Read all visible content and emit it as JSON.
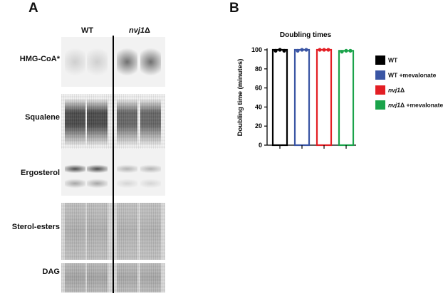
{
  "panelA": {
    "letter": "A",
    "columns": {
      "wt": "WT",
      "mutant_gene": "nvj1",
      "mutant_delta": "Δ"
    },
    "rows": [
      {
        "label": "HMG-CoA*",
        "wt_level": 0.15,
        "mutant_level": 0.65
      },
      {
        "label": "Squalene",
        "wt_level": 0.85,
        "mutant_level": 0.7
      },
      {
        "label": "Ergosterol",
        "wt_level": 0.85,
        "mutant_level": 0.3
      },
      {
        "label": "Sterol-esters",
        "wt_level": 0.55,
        "mutant_level": 0.5
      },
      {
        "label": "DAG",
        "wt_level": 0.7,
        "mutant_level": 0.65
      }
    ]
  },
  "panelB": {
    "letter": "B",
    "chart_data": {
      "type": "bar",
      "title": "Doubling times",
      "ylabel": "Doubling time (minutes)",
      "ylim": [
        0,
        100
      ],
      "yticks": [
        "0",
        "20",
        "40",
        "60",
        "80",
        "100"
      ],
      "series": [
        {
          "name": "WT",
          "value": 100,
          "color": "#000000",
          "points": [
            99,
            100,
            99
          ]
        },
        {
          "name": "WT +mevalonate",
          "value": 100,
          "color": "#3a55a4",
          "points": [
            99,
            100,
            100
          ]
        },
        {
          "name": "nvj1Δ",
          "value": 100,
          "color": "#e31e24",
          "points": [
            100,
            100,
            100
          ]
        },
        {
          "name": "nvj1Δ +mevalonate",
          "value": 99,
          "color": "#1aa34a",
          "points": [
            98,
            99,
            99
          ]
        }
      ],
      "legend": [
        {
          "gene": "",
          "delta": "",
          "rest": "WT",
          "color": "#000000"
        },
        {
          "gene": "",
          "delta": "",
          "rest": "WT +mevalonate",
          "color": "#3a55a4"
        },
        {
          "gene": "nvj1",
          "delta": "Δ",
          "rest": "",
          "color": "#e31e24"
        },
        {
          "gene": "nvj1",
          "delta": "Δ",
          "rest": " +mevalonate",
          "color": "#1aa34a"
        }
      ]
    }
  }
}
